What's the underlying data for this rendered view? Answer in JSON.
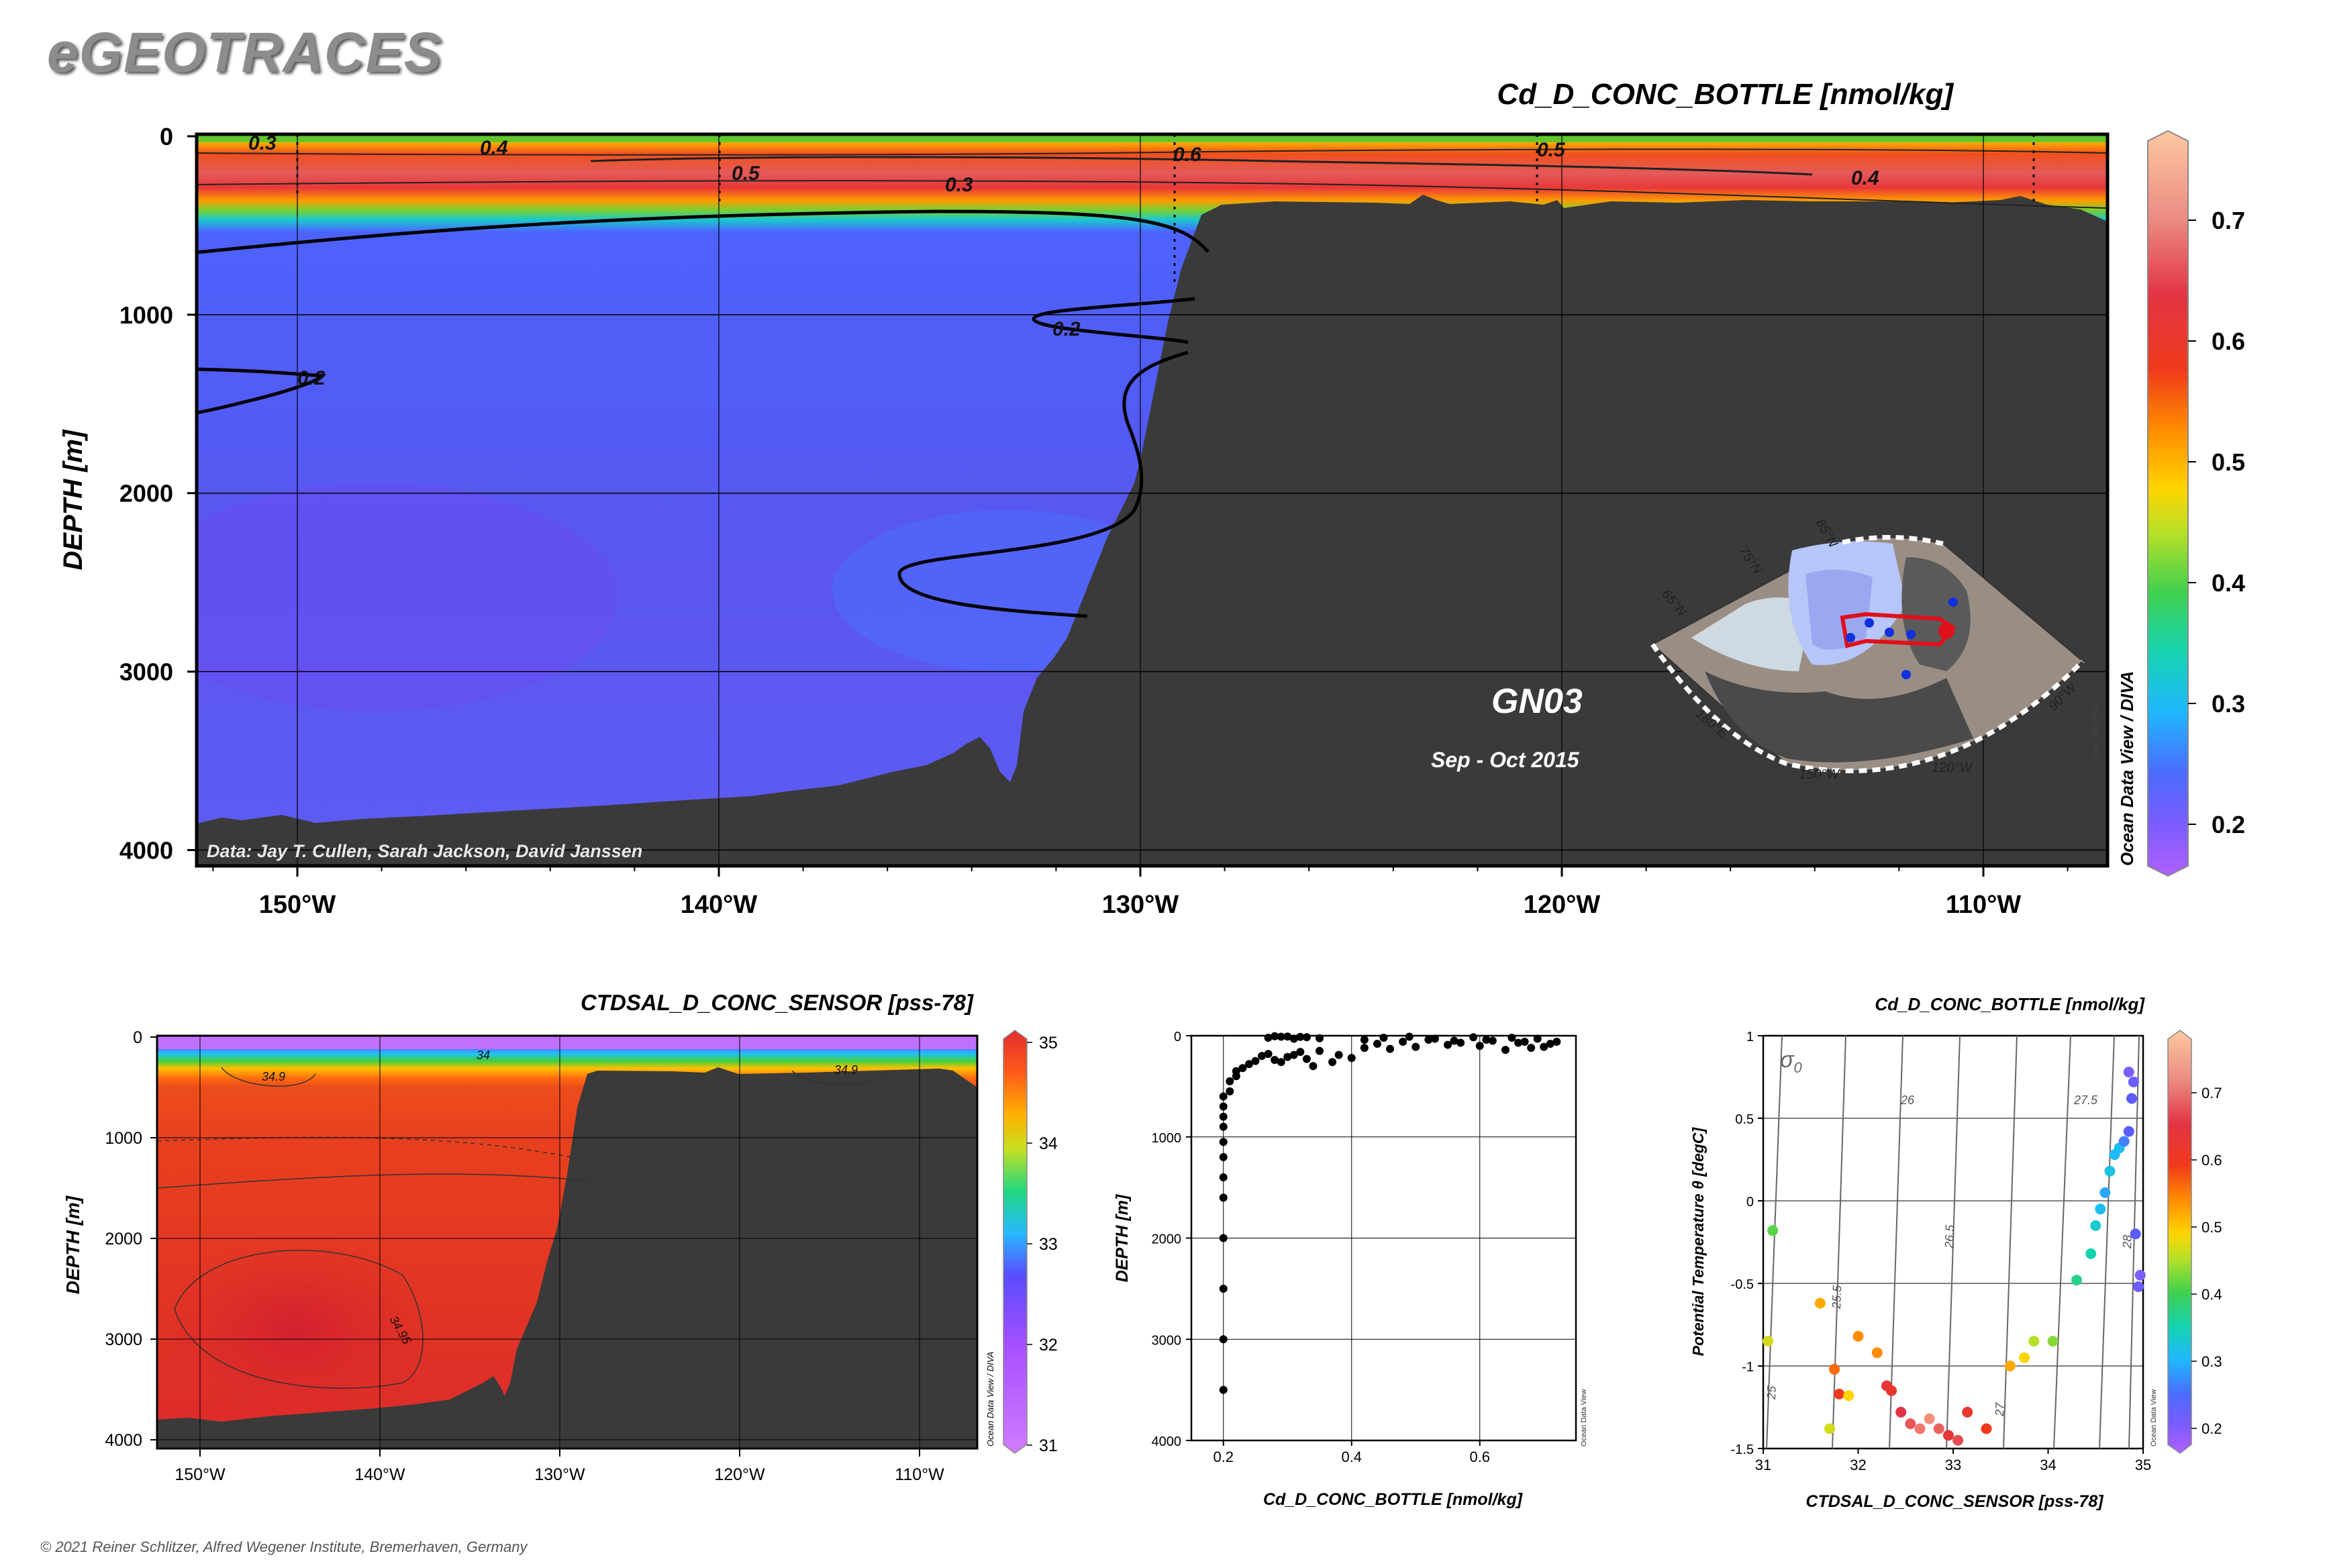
{
  "header": {
    "logo_text": "eGEOTRACES",
    "copyright": "© 2021 Reiner Schlitzer, Alfred Wegener Institute, Bremerhaven, Germany"
  },
  "colors": {
    "land": "#3a3a3a",
    "frame": "#000000",
    "cd_scale": [
      "#b060ff",
      "#5a5cff",
      "#3f8cff",
      "#1fc8ff",
      "#16d3b0",
      "#3fd04f",
      "#a6e028",
      "#ffd400",
      "#ff9a00",
      "#f53b1c",
      "#e8393a",
      "#e26a6a",
      "#f7a990",
      "#fdc8a0"
    ],
    "sal_scale": [
      "#d07cff",
      "#a850ff",
      "#6a4cff",
      "#4a7cff",
      "#27b8ff",
      "#14d8c0",
      "#40d040",
      "#c8e020",
      "#ffc800",
      "#ff8c00",
      "#ff5a1a",
      "#e42e2e"
    ]
  },
  "section_main": {
    "title": "Cd_D_CONC_BOTTLE [nmol/kg]",
    "ylabel": "DEPTH [m]",
    "yticks": [
      "0",
      "1000",
      "2000",
      "3000",
      "4000"
    ],
    "xticks": [
      "150°W",
      "140°W",
      "130°W",
      "120°W",
      "110°W"
    ],
    "contour_labels": [
      "0.3",
      "0.4",
      "0.5",
      "0.6",
      "0.5",
      "0.4",
      "0.3",
      "0.2",
      "0.2"
    ],
    "data_credit": "Data: Jay T. Cullen, Sarah Jackson, David Janssen",
    "cruise": "GN03",
    "period": "Sep - Oct 2015",
    "watermark": "Ocean Data View / DIVA",
    "map_lat_labels": [
      "85°N",
      "75°N",
      "65°N"
    ],
    "map_lon_labels": [
      "180°E",
      "150°W",
      "120°W",
      "90°W"
    ],
    "map_watermark": "Ocean Data View",
    "colorbar_ticks": [
      "0.7",
      "0.6",
      "0.5",
      "0.4",
      "0.3",
      "0.2"
    ]
  },
  "section_sal": {
    "title": "CTDSAL_D_CONC_SENSOR [pss-78]",
    "ylabel": "DEPTH [m]",
    "yticks": [
      "0",
      "1000",
      "2000",
      "3000",
      "4000"
    ],
    "xticks": [
      "150°W",
      "140°W",
      "130°W",
      "120°W",
      "110°W"
    ],
    "contour_labels": [
      "34",
      "34.9",
      "34.9",
      "34.95"
    ],
    "watermark": "Ocean Data View / DIVA",
    "colorbar_ticks": [
      "35",
      "34",
      "33",
      "32",
      "31"
    ]
  },
  "chart_data": [
    {
      "type": "scatter",
      "xlabel": "Cd_D_CONC_BOTTLE [nmol/kg]",
      "ylabel": "DEPTH [m]",
      "xlim": [
        0.15,
        0.75
      ],
      "ylim": [
        4000,
        0
      ],
      "xticks": [
        "0.2",
        "0.4",
        "0.6"
      ],
      "yticks": [
        "0",
        "1000",
        "2000",
        "3000",
        "4000"
      ],
      "watermark": "Ocean Data View",
      "x": [
        0.2,
        0.2,
        0.2,
        0.2,
        0.2,
        0.2,
        0.2,
        0.2,
        0.2,
        0.2,
        0.2,
        0.2,
        0.21,
        0.21,
        0.22,
        0.22,
        0.23,
        0.24,
        0.25,
        0.26,
        0.27,
        0.28,
        0.29,
        0.3,
        0.31,
        0.32,
        0.33,
        0.34,
        0.35,
        0.37,
        0.38,
        0.4,
        0.42,
        0.44,
        0.46,
        0.48,
        0.5,
        0.52,
        0.55,
        0.57,
        0.6,
        0.62,
        0.64,
        0.66,
        0.68,
        0.7,
        0.72,
        0.27,
        0.29,
        0.31,
        0.33,
        0.35,
        0.28,
        0.3,
        0.32,
        0.42,
        0.45,
        0.49,
        0.53,
        0.56,
        0.59,
        0.61,
        0.65,
        0.67,
        0.69,
        0.71
      ],
      "y": [
        3500,
        3000,
        2500,
        2000,
        1600,
        1400,
        1200,
        1050,
        900,
        800,
        700,
        600,
        550,
        450,
        400,
        350,
        320,
        280,
        250,
        200,
        180,
        240,
        260,
        210,
        190,
        160,
        230,
        300,
        150,
        260,
        190,
        220,
        120,
        80,
        130,
        60,
        110,
        40,
        90,
        70,
        100,
        50,
        140,
        70,
        120,
        110,
        60,
        20,
        10,
        30,
        15,
        25,
        5,
        8,
        12,
        40,
        20,
        10,
        30,
        50,
        15,
        40,
        20,
        60,
        30,
        80
      ]
    },
    {
      "type": "scatter",
      "title": "Cd_D_CONC_BOTTLE [nmol/kg]",
      "xlabel": "CTDSAL_D_CONC_SENSOR [pss-78]",
      "ylabel": "Potential Temperature θ [degC]",
      "xlim": [
        31,
        35
      ],
      "ylim": [
        -1.5,
        1
      ],
      "xticks": [
        "31",
        "32",
        "33",
        "34",
        "35"
      ],
      "yticks": [
        "1",
        "0.5",
        "0",
        "-0.5",
        "-1",
        "-1.5"
      ],
      "sigma_symbol": "σ",
      "sigma_sub": "0",
      "isopycnal_labels": [
        "25",
        "25.5",
        "26",
        "26.5",
        "27",
        "27.5",
        "28"
      ],
      "watermark": "Ocean Data View",
      "colorbar_ticks": [
        "0.7",
        "0.6",
        "0.5",
        "0.4",
        "0.3",
        "0.2"
      ],
      "x": [
        31.05,
        31.1,
        31.6,
        31.75,
        31.8,
        32.2,
        32.3,
        32.35,
        32.45,
        32.55,
        32.65,
        32.75,
        32.85,
        32.95,
        33.05,
        33.15,
        33.35,
        33.6,
        33.75,
        33.85,
        34.05,
        34.3,
        34.45,
        34.5,
        34.55,
        34.6,
        34.65,
        34.7,
        34.75,
        34.8,
        34.85,
        34.88,
        34.9,
        34.92,
        34.95,
        34.97,
        31.7,
        32.0,
        31.9,
        34.85
      ],
      "y": [
        -0.85,
        -0.18,
        -0.62,
        -1.02,
        -1.17,
        -0.92,
        -1.12,
        -1.15,
        -1.28,
        -1.35,
        -1.38,
        -1.32,
        -1.38,
        -1.42,
        -1.45,
        -1.28,
        -1.38,
        -1.0,
        -0.95,
        -0.85,
        -0.85,
        -0.48,
        -0.32,
        -0.15,
        -0.05,
        0.05,
        0.18,
        0.28,
        0.32,
        0.36,
        0.42,
        0.62,
        0.72,
        -0.2,
        -0.52,
        -0.45,
        -1.38,
        -0.82,
        -1.18,
        0.78
      ],
      "value": [
        0.42,
        0.36,
        0.48,
        0.52,
        0.55,
        0.5,
        0.6,
        0.58,
        0.62,
        0.65,
        0.68,
        0.7,
        0.66,
        0.6,
        0.64,
        0.58,
        0.55,
        0.48,
        0.45,
        0.4,
        0.38,
        0.32,
        0.3,
        0.28,
        0.26,
        0.24,
        0.27,
        0.25,
        0.26,
        0.22,
        0.2,
        0.2,
        0.19,
        0.2,
        0.19,
        0.18,
        0.42,
        0.5,
        0.45,
        0.18
      ]
    }
  ]
}
